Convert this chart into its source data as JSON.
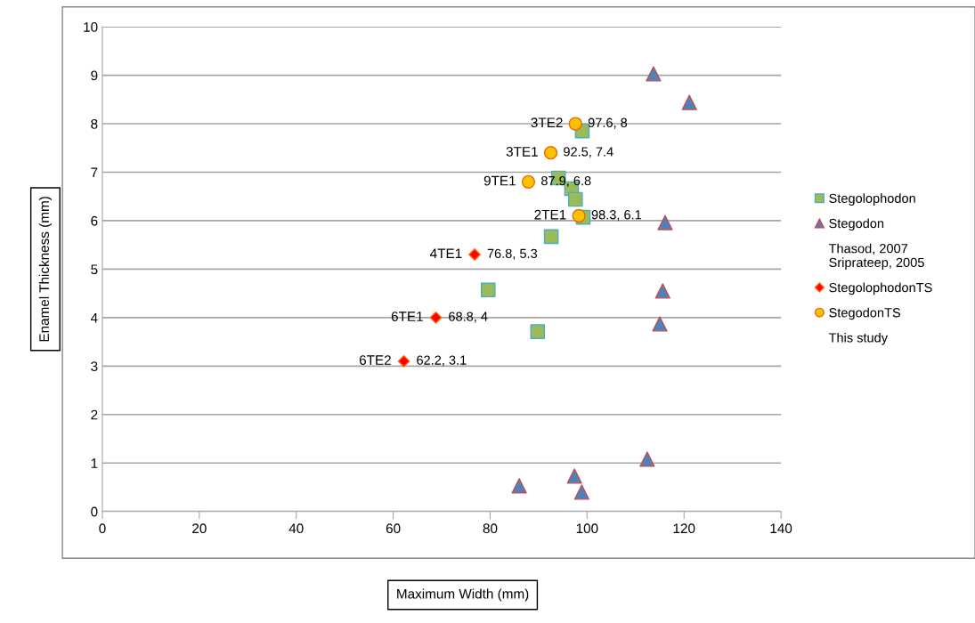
{
  "chart_data": {
    "type": "scatter",
    "xlabel": "Maximum Width (mm)",
    "ylabel": "Enamel Thickness (mm)",
    "xlim": [
      0,
      140
    ],
    "xticks": [
      0,
      20,
      40,
      60,
      80,
      100,
      120,
      140
    ],
    "ylim": [
      0,
      10
    ],
    "yticks": [
      0,
      1,
      2,
      3,
      4,
      5,
      6,
      7,
      8,
      9,
      10
    ],
    "grid": "y",
    "legend": "right",
    "series": [
      {
        "name": "Stegolophodon",
        "color": "#9bbb59",
        "marker": "square",
        "x": [
          99.0,
          94.1,
          96.8,
          97.6,
          99.2,
          92.6,
          79.6,
          89.8
        ],
        "values": [
          7.85,
          6.88,
          6.66,
          6.44,
          6.07,
          5.67,
          4.57,
          3.71
        ]
      },
      {
        "name": "Stegodon",
        "color": "#4f81bd",
        "marker": "triangle",
        "x": [
          113.7,
          121.1,
          116.1,
          115.6,
          115.0,
          86.0,
          97.4,
          98.9,
          112.4
        ],
        "values": [
          9.03,
          8.44,
          5.96,
          4.55,
          3.87,
          0.53,
          0.73,
          0.4,
          1.08
        ]
      },
      {
        "name": "StegolophodonTS",
        "color": "#ff0000",
        "marker": "diamond",
        "x": [
          76.8,
          68.8,
          62.2
        ],
        "values": [
          5.3,
          4,
          3.1
        ]
      },
      {
        "name": "StegodonTS",
        "color": "#ffc000",
        "marker": "circle",
        "x": [
          97.6,
          92.5,
          87.9,
          98.3
        ],
        "values": [
          8,
          7.4,
          6.8,
          6.1
        ]
      }
    ],
    "annotations": [
      "Thasod, 2007\nSriprateep, 2005",
      "This study",
      {
        "text": "3TE2",
        "x": 97.6,
        "y": 8
      },
      {
        "text": "97.6, 8",
        "x": 97.6,
        "y": 8
      },
      {
        "text": "3TE1",
        "x": 92.5,
        "y": 7.4
      },
      {
        "text": "92.5, 7.4",
        "x": 92.5,
        "y": 7.4
      },
      {
        "text": "9TE1",
        "x": 87.9,
        "y": 6.8
      },
      {
        "text": "87.9, 6.8",
        "x": 87.9,
        "y": 6.8
      },
      {
        "text": "2TE1",
        "x": 98.3,
        "y": 6.1
      },
      {
        "text": "98.3, 6.1",
        "x": 98.3,
        "y": 6.1
      },
      {
        "text": "4TE1",
        "x": 76.8,
        "y": 5.3
      },
      {
        "text": "76.8, 5.3",
        "x": 76.8,
        "y": 5.3
      },
      {
        "text": "6TE1",
        "x": 68.8,
        "y": 4
      },
      {
        "text": "68.8, 4",
        "x": 68.8,
        "y": 4
      },
      {
        "text": "6TE2",
        "x": 62.2,
        "y": 3.1
      },
      {
        "text": "62.2, 3.1",
        "x": 62.2,
        "y": 3.1
      }
    ]
  }
}
